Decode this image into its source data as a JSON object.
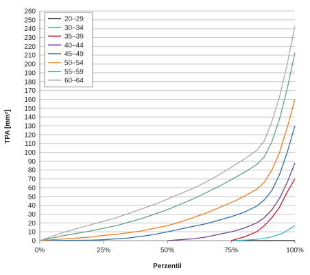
{
  "chart_data": {
    "type": "line",
    "title": "",
    "xlabel": "Perzentil",
    "ylabel": "TPA [mm²]",
    "xlim": [
      0,
      100
    ],
    "ylim": [
      0,
      260
    ],
    "x_ticks": [
      0,
      25,
      50,
      75,
      100
    ],
    "x_tick_labels": [
      "0%",
      "25%",
      "50%",
      "75%",
      "100%"
    ],
    "y_ticks": [
      0,
      10,
      20,
      30,
      40,
      50,
      60,
      70,
      80,
      90,
      100,
      110,
      120,
      130,
      140,
      150,
      160,
      170,
      180,
      190,
      200,
      210,
      220,
      230,
      240,
      250,
      260
    ],
    "grid": "horizontal",
    "legend_position": "top-left",
    "series": [
      {
        "name": "20–29",
        "color": "#1a1a1a",
        "x": [
          75,
          100
        ],
        "values": [
          0,
          0
        ]
      },
      {
        "name": "30–34",
        "color": "#3fb6cf",
        "x": [
          75,
          80,
          85,
          90,
          95,
          100
        ],
        "values": [
          0,
          0.5,
          1.5,
          3.5,
          8,
          17
        ]
      },
      {
        "name": "35–39",
        "color": "#c8102e",
        "x": [
          75,
          80,
          85,
          88,
          91,
          94,
          97,
          100
        ],
        "values": [
          0,
          4,
          10,
          17,
          26,
          38,
          55,
          70
        ]
      },
      {
        "name": "40–44",
        "color": "#6f3f91",
        "x": [
          50,
          55,
          60,
          65,
          70,
          75,
          80,
          85,
          88,
          91,
          94,
          97,
          100
        ],
        "values": [
          0,
          1,
          2,
          4,
          7,
          10,
          14,
          20,
          26,
          35,
          48,
          66,
          88
        ]
      },
      {
        "name": "45–49",
        "color": "#2e6aa8",
        "x": [
          0,
          20,
          25,
          30,
          35,
          40,
          45,
          50,
          55,
          60,
          65,
          70,
          75,
          80,
          85,
          88,
          91,
          94,
          97,
          100
        ],
        "values": [
          0,
          0.5,
          1,
          2,
          3,
          5,
          7,
          10,
          13,
          16,
          19,
          23,
          27,
          32,
          39,
          46,
          57,
          75,
          100,
          130
        ]
      },
      {
        "name": "50–54",
        "color": "#f07a1a",
        "x": [
          0,
          10,
          20,
          25,
          30,
          35,
          40,
          45,
          50,
          55,
          60,
          65,
          70,
          75,
          80,
          85,
          88,
          91,
          94,
          97,
          100
        ],
        "values": [
          0,
          2,
          4,
          6,
          7,
          9,
          11,
          14,
          17,
          21,
          26,
          31,
          37,
          43,
          50,
          58,
          66,
          80,
          100,
          128,
          160
        ]
      },
      {
        "name": "55–59",
        "color": "#5f9e8a",
        "x": [
          0,
          10,
          20,
          25,
          30,
          35,
          40,
          45,
          50,
          55,
          60,
          65,
          70,
          75,
          80,
          85,
          88,
          91,
          94,
          97,
          100
        ],
        "values": [
          0,
          6,
          11,
          14,
          17,
          21,
          25,
          30,
          35,
          41,
          47,
          54,
          61,
          69,
          77,
          86,
          95,
          112,
          138,
          172,
          213
        ]
      },
      {
        "name": "60–64",
        "color": "#a8a8a8",
        "x": [
          0,
          10,
          20,
          25,
          30,
          35,
          40,
          45,
          50,
          55,
          60,
          65,
          70,
          75,
          80,
          85,
          88,
          91,
          94,
          97,
          100
        ],
        "values": [
          0,
          10,
          18,
          22,
          26,
          31,
          36,
          41,
          47,
          53,
          59,
          66,
          74,
          83,
          92,
          102,
          113,
          135,
          163,
          200,
          243
        ]
      }
    ]
  }
}
